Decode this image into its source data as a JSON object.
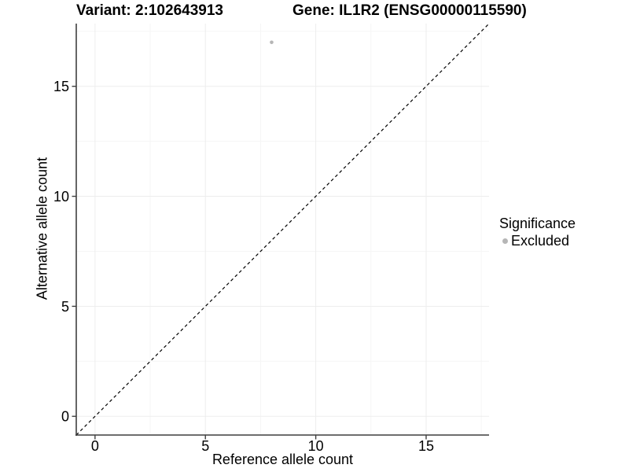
{
  "titles": {
    "variant": "Variant: 2:102643913",
    "gene": "Gene: IL1R2 (ENSG00000115590)"
  },
  "colors": {
    "background": "#ffffff",
    "axis_line": "#3f3f3f",
    "grid_major": "#ededed",
    "grid_minor": "#f6f6f6",
    "text": "#000000",
    "point": "#b6b6b6",
    "reference_line": "#000000"
  },
  "chart_data": {
    "type": "scatter",
    "title_left": "Variant: 2:102643913",
    "title_right": "Gene: IL1R2 (ENSG00000115590)",
    "xlabel": "Reference allele count",
    "ylabel": "Alternative allele count",
    "xlim": [
      -0.85,
      17.85
    ],
    "ylim": [
      -0.85,
      17.85
    ],
    "x_ticks": [
      0,
      5,
      10,
      15
    ],
    "y_ticks": [
      0,
      5,
      10,
      15
    ],
    "x_minor_ticks": [
      2.5,
      7.5,
      12.5,
      17.5
    ],
    "y_minor_ticks": [
      2.5,
      7.5,
      12.5,
      17.5
    ],
    "grid": true,
    "legend_position": "right",
    "legend_title": "Significance",
    "series": [
      {
        "name": "Excluded",
        "color": "#b6b6b6",
        "points": [
          [
            8,
            17
          ]
        ]
      }
    ],
    "reference_line": {
      "kind": "identity",
      "x1": -0.85,
      "y1": -0.85,
      "x2": 17.85,
      "y2": 17.85,
      "style": "dashed",
      "color": "#000000"
    }
  }
}
